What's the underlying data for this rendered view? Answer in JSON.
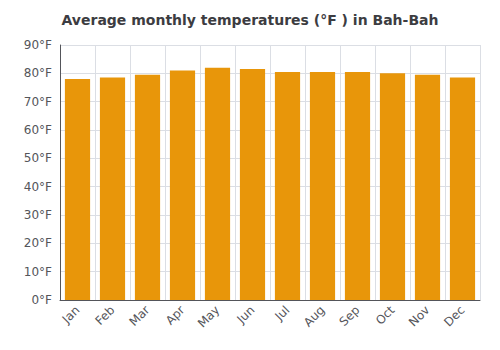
{
  "chart_data": {
    "type": "bar",
    "title": "Average monthly temperatures (°F ) in Bah-Bah",
    "categories": [
      "Jan",
      "Feb",
      "Mar",
      "Apr",
      "May",
      "Jun",
      "Jul",
      "Aug",
      "Sep",
      "Oct",
      "Nov",
      "Dec"
    ],
    "values": [
      78,
      78.5,
      79.5,
      81,
      82,
      81.5,
      80.5,
      80.5,
      80.5,
      80,
      79.5,
      78.5
    ],
    "color": "#E8960A",
    "ylim": [
      0,
      90
    ],
    "yticks": [
      {
        "value": 0,
        "label": "0°F"
      },
      {
        "value": 10,
        "label": "10°F"
      },
      {
        "value": 20,
        "label": "20°F"
      },
      {
        "value": 30,
        "label": "30°F"
      },
      {
        "value": 40,
        "label": "40°F"
      },
      {
        "value": 50,
        "label": "50°F"
      },
      {
        "value": 60,
        "label": "60°F"
      },
      {
        "value": 70,
        "label": "70°F"
      },
      {
        "value": 80,
        "label": "80°F"
      },
      {
        "value": 90,
        "label": "90°F"
      }
    ],
    "grid": true
  }
}
